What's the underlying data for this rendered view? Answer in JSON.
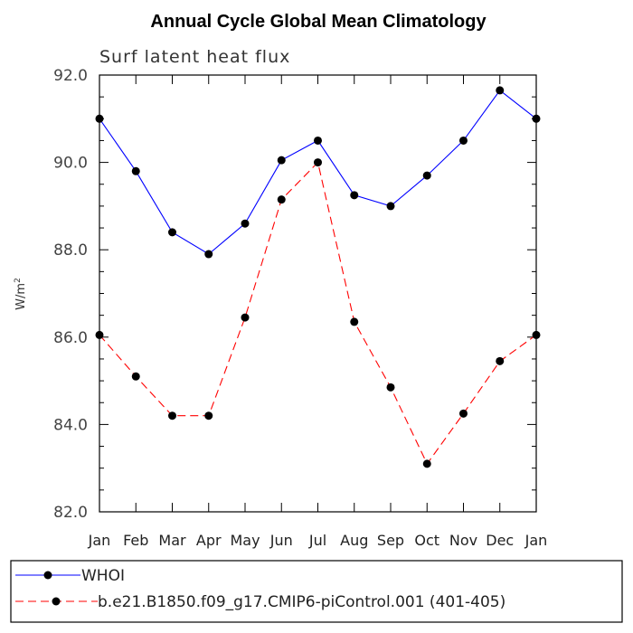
{
  "chart_data": {
    "type": "line",
    "title": "Annual Cycle Global Mean Climatology",
    "subtitle": "Surf latent heat flux",
    "ylabel": "W/m",
    "ylabel_superscript": "2",
    "xlabel": "",
    "categories": [
      "Jan",
      "Feb",
      "Mar",
      "Apr",
      "May",
      "Jun",
      "Jul",
      "Aug",
      "Sep",
      "Oct",
      "Nov",
      "Dec",
      "Jan"
    ],
    "ylim": [
      82.0,
      92.0
    ],
    "yticks": [
      82.0,
      84.0,
      86.0,
      88.0,
      90.0,
      92.0
    ],
    "ytick_labels": [
      "82.0",
      "84.0",
      "86.0",
      "88.0",
      "90.0",
      "92.0"
    ],
    "series": [
      {
        "name": "WHOI",
        "color": "#0000ff",
        "style": "solid",
        "marker": "dot",
        "values": [
          91.0,
          89.8,
          88.4,
          87.9,
          88.6,
          90.05,
          90.5,
          89.25,
          89.0,
          89.7,
          90.5,
          91.65,
          91.0
        ]
      },
      {
        "name": "b.e21.B1850.f09_g17.CMIP6-piControl.001 (401-405)",
        "color": "#ff0000",
        "style": "dashed",
        "marker": "dot",
        "values": [
          86.05,
          85.1,
          84.2,
          84.2,
          86.45,
          89.15,
          90.0,
          86.35,
          84.85,
          83.1,
          84.25,
          85.45,
          86.05
        ]
      }
    ],
    "legend": "bottom"
  }
}
